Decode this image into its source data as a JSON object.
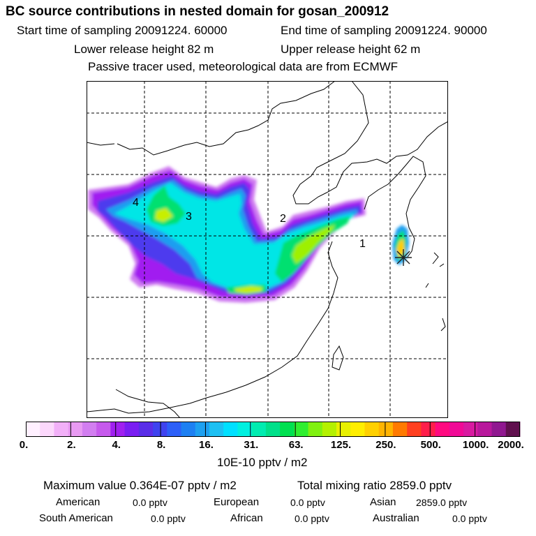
{
  "header": {
    "title": "BC  source contributions in nested domain for gosan_200912",
    "start": "Start time of sampling 20091224. 60000",
    "end": "End time of sampling 20091224. 90000",
    "lower": "Lower release height   82 m",
    "upper": "Upper release height   62 m",
    "tracer": "Passive tracer used, meteorological data are from ECMWF"
  },
  "map": {
    "labels": [
      "4",
      "3",
      "2",
      "1"
    ],
    "receptor_marker": "star-icon"
  },
  "colorbar": {
    "colors": [
      "#fff0ff",
      "#fcd8fc",
      "#f2b0f8",
      "#e89af2",
      "#d27ef0",
      "#c65aec",
      "#a020f0",
      "#7a1ef2",
      "#5a2ee8",
      "#3f43ef",
      "#2d60f8",
      "#1e80f2",
      "#1ea0f0",
      "#1ec0f2",
      "#00e0ff",
      "#00f0e0",
      "#00ecb0",
      "#00e08a",
      "#00e050",
      "#30ee30",
      "#80f010",
      "#b4f000",
      "#e8f000",
      "#ffee00",
      "#ffd000",
      "#ffb400",
      "#ff7a00",
      "#ff4020",
      "#ff1e4a",
      "#ff0a80",
      "#f00a96",
      "#d81aa0",
      "#b8189c",
      "#901890",
      "#60104e"
    ],
    "ticks": [
      "0.",
      "2.",
      "4.",
      "8.",
      "16.",
      "31.",
      "63.",
      "125.",
      "250.",
      "500.",
      "1000.",
      "2000."
    ],
    "unit": "10E-10 pptv / m2"
  },
  "summary": {
    "max": "Maximum value  0.364E-07 pptv / m2",
    "total": "Total mixing ratio     2859.0 pptv",
    "regions": [
      {
        "name": "American",
        "value": "0.0 pptv"
      },
      {
        "name": "European",
        "value": "0.0 pptv"
      },
      {
        "name": "Asian",
        "value": "2859.0 pptv"
      },
      {
        "name": "South American",
        "value": "0.0 pptv"
      },
      {
        "name": "African",
        "value": "0.0 pptv"
      },
      {
        "name": "Australian",
        "value": "0.0 pptv"
      }
    ]
  }
}
